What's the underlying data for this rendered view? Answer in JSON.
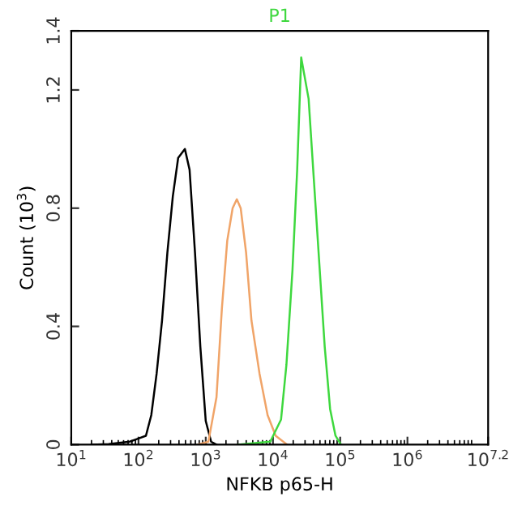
{
  "chart_data": {
    "type": "line",
    "title": "P1",
    "xlabel": "NFKB p65-H",
    "ylabel": "Count (10$^{3}$)",
    "log": "x",
    "grid": false,
    "legend": false,
    "marker": "none",
    "line_style": "solid",
    "xlim": [
      10,
      15848932
    ],
    "ylim": [
      0,
      1.4
    ],
    "xticks": [
      {
        "value": 10,
        "label": "10$^{1}$"
      },
      {
        "value": 100,
        "label": "10$^{2}$"
      },
      {
        "value": 1000,
        "label": "10$^{3}$"
      },
      {
        "value": 10000,
        "label": "10$^{4}$"
      },
      {
        "value": 100000,
        "label": "10$^{5}$"
      },
      {
        "value": 1000000,
        "label": "10$^{6}$"
      },
      {
        "value": 15848932,
        "label": "10$^{7.2}$"
      }
    ],
    "yticks": [
      0,
      0.4,
      0.8,
      1.2,
      1.4
    ],
    "series": [
      {
        "color": "#000000",
        "x": [
          20,
          36,
          74,
          98,
          129,
          155,
          186,
          224,
          269,
          324,
          389,
          490,
          575,
          692,
          832,
          1000,
          1202,
          1445
        ],
        "values": [
          0,
          0.002,
          0.01,
          0.02,
          0.03,
          0.1,
          0.24,
          0.42,
          0.65,
          0.84,
          0.97,
          1.0,
          0.93,
          0.65,
          0.33,
          0.08,
          0.01,
          0
        ]
      },
      {
        "color": "#f0a468",
        "x": [
          759,
          1096,
          1445,
          1738,
          2089,
          2512,
          2900,
          3311,
          3981,
          4786,
          6310,
          8318,
          10965,
          16218
        ],
        "values": [
          0,
          0.01,
          0.16,
          0.46,
          0.69,
          0.8,
          0.83,
          0.8,
          0.65,
          0.42,
          0.24,
          0.1,
          0.03,
          0
        ]
      },
      {
        "color": "#3ed83e",
        "x": [
          3020,
          9120,
          13183,
          15849,
          19498,
          22909,
          26300,
          33884,
          40738,
          48978,
          58884,
          70795,
          85114,
          102329
        ],
        "values": [
          0,
          0.01,
          0.085,
          0.27,
          0.59,
          0.93,
          1.31,
          1.17,
          0.89,
          0.61,
          0.33,
          0.12,
          0.03,
          0
        ]
      }
    ]
  }
}
